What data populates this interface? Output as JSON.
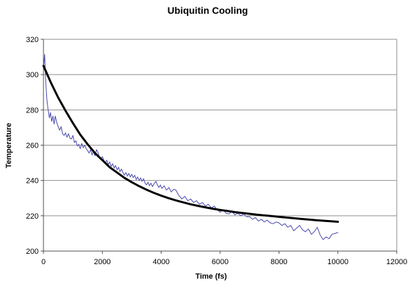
{
  "chart_data": {
    "type": "line",
    "title": "Ubiquitin Cooling",
    "xlabel": "Time (fs)",
    "ylabel": "Temperature",
    "xlim": [
      0,
      12000
    ],
    "ylim": [
      200,
      320
    ],
    "x_ticks": [
      0,
      2000,
      4000,
      6000,
      8000,
      10000,
      12000
    ],
    "y_ticks": [
      200,
      220,
      240,
      260,
      280,
      300,
      320
    ],
    "grid": "horizontal",
    "legend": "none",
    "plot_border": "left-right-top-bottom",
    "series": [
      {
        "name": "noisy-temperature-trace",
        "color": "#4646AD",
        "stroke_width": 1,
        "points": [
          [
            0,
            303
          ],
          [
            40,
            311.5
          ],
          [
            80,
            295
          ],
          [
            120,
            285
          ],
          [
            160,
            280
          ],
          [
            200,
            275.5
          ],
          [
            240,
            278.5
          ],
          [
            280,
            273.5
          ],
          [
            320,
            276.5
          ],
          [
            360,
            272
          ],
          [
            400,
            276.5
          ],
          [
            450,
            273
          ],
          [
            500,
            270.5
          ],
          [
            550,
            268.5
          ],
          [
            600,
            270.5
          ],
          [
            650,
            266.5
          ],
          [
            700,
            265.5
          ],
          [
            750,
            267
          ],
          [
            800,
            264.5
          ],
          [
            850,
            266.5
          ],
          [
            900,
            264
          ],
          [
            950,
            263.5
          ],
          [
            1000,
            265.5
          ],
          [
            1050,
            261.5
          ],
          [
            1100,
            262.5
          ],
          [
            1150,
            259.5
          ],
          [
            1200,
            260.5
          ],
          [
            1250,
            258
          ],
          [
            1300,
            261
          ],
          [
            1350,
            258.5
          ],
          [
            1400,
            260
          ],
          [
            1450,
            258
          ],
          [
            1500,
            257
          ],
          [
            1550,
            255.5
          ],
          [
            1600,
            257.5
          ],
          [
            1650,
            254.5
          ],
          [
            1700,
            256.5
          ],
          [
            1750,
            254
          ],
          [
            1800,
            257.5
          ],
          [
            1850,
            256
          ],
          [
            1900,
            253
          ],
          [
            1950,
            252
          ],
          [
            2000,
            253.5
          ],
          [
            2050,
            251.5
          ],
          [
            2100,
            250
          ],
          [
            2150,
            251.5
          ],
          [
            2200,
            249
          ],
          [
            2250,
            250.5
          ],
          [
            2300,
            248
          ],
          [
            2350,
            249.5
          ],
          [
            2400,
            247
          ],
          [
            2450,
            248.5
          ],
          [
            2500,
            246
          ],
          [
            2550,
            247.5
          ],
          [
            2600,
            245
          ],
          [
            2650,
            246.5
          ],
          [
            2700,
            244.5
          ],
          [
            2750,
            243
          ],
          [
            2800,
            244.5
          ],
          [
            2850,
            242.5
          ],
          [
            2900,
            244
          ],
          [
            2950,
            242
          ],
          [
            3000,
            243.5
          ],
          [
            3050,
            241.5
          ],
          [
            3100,
            243
          ],
          [
            3150,
            240.5
          ],
          [
            3200,
            242
          ],
          [
            3250,
            240
          ],
          [
            3300,
            241.5
          ],
          [
            3350,
            239.5
          ],
          [
            3400,
            241
          ],
          [
            3450,
            238.5
          ],
          [
            3500,
            237.5
          ],
          [
            3550,
            239
          ],
          [
            3600,
            237
          ],
          [
            3650,
            238.5
          ],
          [
            3700,
            236.5
          ],
          [
            3750,
            238
          ],
          [
            3820,
            239.5
          ],
          [
            3870,
            237.5
          ],
          [
            3920,
            236
          ],
          [
            3970,
            237.5
          ],
          [
            4020,
            235.5
          ],
          [
            4100,
            237
          ],
          [
            4180,
            234.5
          ],
          [
            4260,
            236
          ],
          [
            4340,
            233.5
          ],
          [
            4420,
            235
          ],
          [
            4500,
            234.5
          ],
          [
            4600,
            231.5
          ],
          [
            4700,
            229.5
          ],
          [
            4800,
            231
          ],
          [
            4900,
            228.5
          ],
          [
            5000,
            229.5
          ],
          [
            5100,
            227.5
          ],
          [
            5200,
            228.5
          ],
          [
            5300,
            226.5
          ],
          [
            5400,
            227.5
          ],
          [
            5500,
            225.5
          ],
          [
            5600,
            226.5
          ],
          [
            5700,
            224.5
          ],
          [
            5800,
            225.5
          ],
          [
            5900,
            223.5
          ],
          [
            6000,
            222
          ],
          [
            6100,
            223.5
          ],
          [
            6200,
            221.5
          ],
          [
            6300,
            221
          ],
          [
            6400,
            222.5
          ],
          [
            6500,
            220.5
          ],
          [
            6600,
            221.5
          ],
          [
            6700,
            220
          ],
          [
            6800,
            221
          ],
          [
            6900,
            219.5
          ],
          [
            7000,
            219.5
          ],
          [
            7100,
            218
          ],
          [
            7200,
            219
          ],
          [
            7300,
            217
          ],
          [
            7400,
            218
          ],
          [
            7500,
            216.5
          ],
          [
            7600,
            217.5
          ],
          [
            7700,
            216
          ],
          [
            7800,
            215.5
          ],
          [
            7900,
            216.5
          ],
          [
            8000,
            216
          ],
          [
            8100,
            214.5
          ],
          [
            8200,
            215.5
          ],
          [
            8300,
            213.5
          ],
          [
            8400,
            214.5
          ],
          [
            8500,
            211.5
          ],
          [
            8600,
            213
          ],
          [
            8700,
            214.5
          ],
          [
            8800,
            212
          ],
          [
            8900,
            211
          ],
          [
            9000,
            212.5
          ],
          [
            9100,
            209.5
          ],
          [
            9200,
            211
          ],
          [
            9300,
            213.5
          ],
          [
            9400,
            209
          ],
          [
            9500,
            206.5
          ],
          [
            9600,
            208
          ],
          [
            9700,
            207
          ],
          [
            9800,
            209.5
          ],
          [
            9900,
            210
          ],
          [
            10000,
            210.5
          ]
        ]
      },
      {
        "name": "smooth-cooling-fit",
        "color": "#000000",
        "stroke_width": 3,
        "points": [
          [
            0,
            305
          ],
          [
            250,
            295.5
          ],
          [
            500,
            287
          ],
          [
            750,
            279.5
          ],
          [
            1000,
            272.5
          ],
          [
            1250,
            266
          ],
          [
            1500,
            260.5
          ],
          [
            1750,
            255.5
          ],
          [
            2000,
            251.5
          ],
          [
            2250,
            247.5
          ],
          [
            2500,
            244.5
          ],
          [
            2750,
            241.5
          ],
          [
            3000,
            239
          ],
          [
            3250,
            236.8
          ],
          [
            3500,
            234.8
          ],
          [
            3750,
            233
          ],
          [
            4000,
            231.4
          ],
          [
            4250,
            230
          ],
          [
            4500,
            228.7
          ],
          [
            4750,
            227.6
          ],
          [
            5000,
            226.5
          ],
          [
            5250,
            225.6
          ],
          [
            5500,
            224.8
          ],
          [
            5750,
            224
          ],
          [
            6000,
            223.3
          ],
          [
            6250,
            222.7
          ],
          [
            6500,
            222.1
          ],
          [
            6750,
            221.6
          ],
          [
            7000,
            221.1
          ],
          [
            7250,
            220.6
          ],
          [
            7500,
            220.2
          ],
          [
            7750,
            219.8
          ],
          [
            8000,
            219.4
          ],
          [
            8250,
            219
          ],
          [
            8500,
            218.6
          ],
          [
            8750,
            218.2
          ],
          [
            9000,
            217.9
          ],
          [
            9250,
            217.5
          ],
          [
            9500,
            217.2
          ],
          [
            9750,
            216.9
          ],
          [
            10000,
            216.6
          ]
        ]
      }
    ]
  },
  "colors": {
    "background": "#FFFFFF",
    "gridline": "#8E8E8E",
    "axis": "#4D4D4D",
    "text": "#000000"
  }
}
